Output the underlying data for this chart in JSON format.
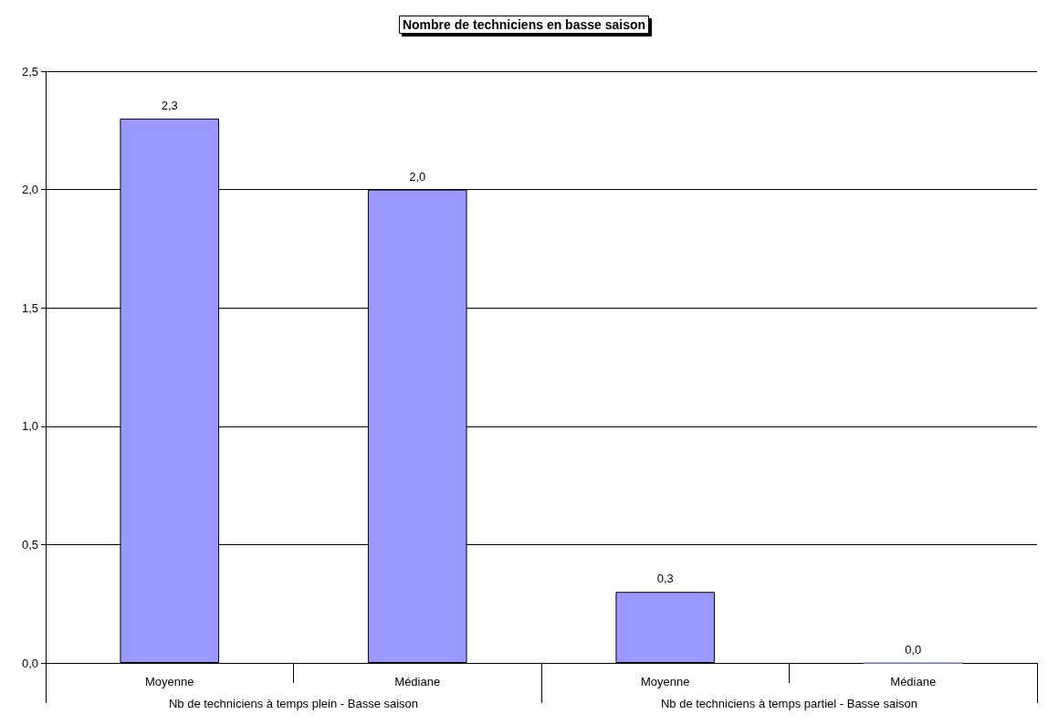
{
  "chart_data": {
    "type": "bar",
    "title": "Nombre de techniciens en basse saison",
    "categories": [
      "Moyenne",
      "Médiane",
      "Moyenne",
      "Médiane"
    ],
    "values": [
      2.3,
      2.0,
      0.3,
      0.0
    ],
    "value_labels": [
      "2,3",
      "2,0",
      "0,3",
      "0,0"
    ],
    "color": "#9999ff",
    "ylim": [
      0,
      2.5
    ],
    "yticks": [
      {
        "value": 0,
        "label": "0,0"
      },
      {
        "value": 0.5,
        "label": "0,5"
      },
      {
        "value": 1,
        "label": "1,0"
      },
      {
        "value": 1.5,
        "label": "1,5"
      },
      {
        "value": 2,
        "label": "2,0"
      },
      {
        "value": 2.5,
        "label": "2,5"
      }
    ],
    "grid": "y",
    "annotations": [
      "Nb de techniciens à temps plein - Basse saison",
      "Nb de techniciens à temps partiel - Basse saison"
    ]
  }
}
